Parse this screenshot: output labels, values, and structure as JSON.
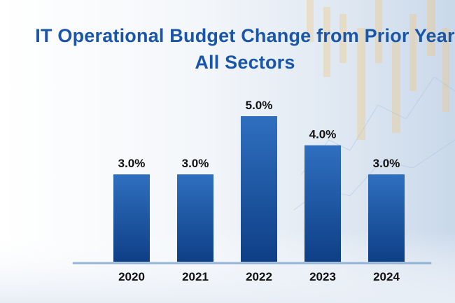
{
  "chart_data": {
    "type": "bar",
    "title": "IT Operational Budget Change from Prior Year",
    "subtitle": "All Sectors",
    "categories": [
      "2020",
      "2021",
      "2022",
      "2023",
      "2024"
    ],
    "values": [
      3.0,
      3.0,
      5.0,
      4.0,
      3.0
    ],
    "value_labels": [
      "3.0%",
      "3.0%",
      "5.0%",
      "4.0%",
      "3.0%"
    ],
    "xlabel": "",
    "ylabel": "",
    "ylim": [
      0,
      5.0
    ],
    "grid": false,
    "legend": "none",
    "bar_color_top": "#2f6fbf",
    "bar_color_bottom": "#0e3f86",
    "title_color": "#1a56a8"
  }
}
